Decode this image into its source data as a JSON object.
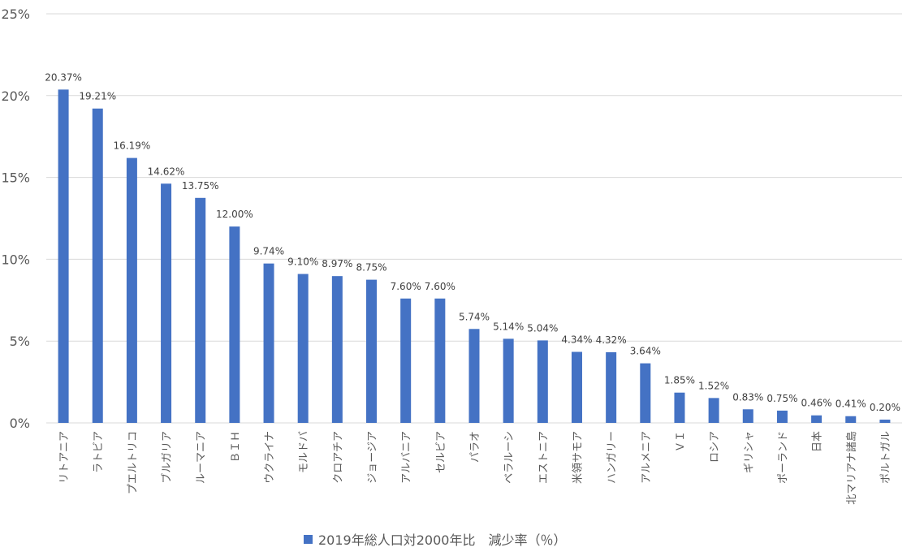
{
  "chart_data": {
    "type": "bar",
    "categories": [
      "リトアニア",
      "ラトビア",
      "プエルトリコ",
      "ブルガリア",
      "ルーマニア",
      "ＢＩＨ",
      "ウクライナ",
      "モルドバ",
      "クロアチア",
      "ジョージア",
      "アルバニア",
      "セルビア",
      "パラオ",
      "ベラルーシ",
      "エストニア",
      "米領サモア",
      "ハンガリー",
      "アルメニア",
      "ＶＩ",
      "ロシア",
      "ギリシャ",
      "ポーランド",
      "日本",
      "北マリアナ諸島",
      "ポルトガル"
    ],
    "series": [
      {
        "name": "2019年総人口対2000年比　減少率（％）",
        "values": [
          20.37,
          19.21,
          16.19,
          14.62,
          13.75,
          12.0,
          9.74,
          9.1,
          8.97,
          8.75,
          7.6,
          7.6,
          5.74,
          5.14,
          5.04,
          4.34,
          4.32,
          3.64,
          1.85,
          1.52,
          0.83,
          0.75,
          0.46,
          0.41,
          0.2
        ],
        "labels": [
          "20.37%",
          "19.21%",
          "16.19%",
          "14.62%",
          "13.75%",
          "12.00%",
          "9.74%",
          "9.10%",
          "8.97%",
          "8.75%",
          "7.60%",
          "7.60%",
          "5.74%",
          "5.14%",
          "5.04%",
          "4.34%",
          "4.32%",
          "3.64%",
          "1.85%",
          "1.52%",
          "0.83%",
          "0.75%",
          "0.46%",
          "0.41%",
          "0.20%"
        ],
        "color": "#4472c4"
      }
    ],
    "ylim": [
      0,
      25
    ],
    "yticks": [
      0,
      5,
      10,
      15,
      20,
      25
    ],
    "ytick_labels": [
      "0%",
      "5%",
      "10%",
      "15%",
      "20%",
      "25%"
    ],
    "grid": true,
    "legend_position": "bottom"
  }
}
